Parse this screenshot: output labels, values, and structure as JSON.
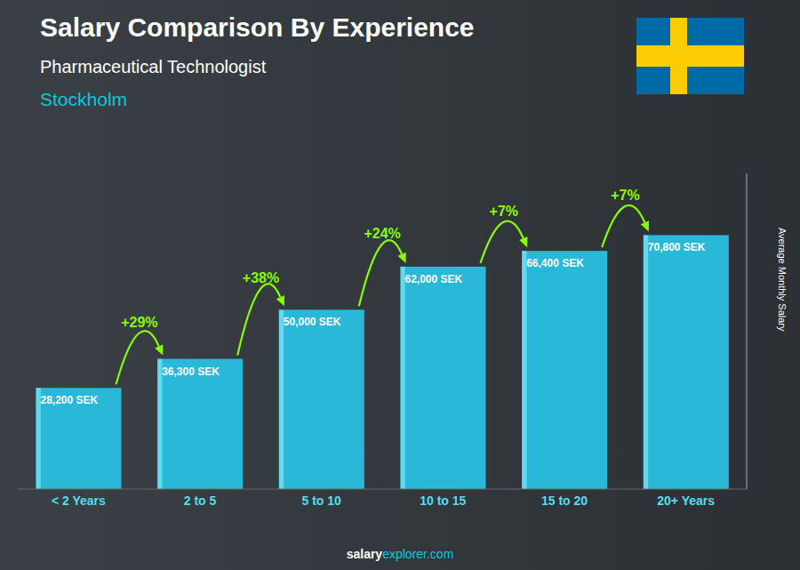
{
  "chart_data": {
    "type": "bar",
    "title": "Salary Comparison By Experience",
    "subtitle": "Pharmaceutical Technologist",
    "categories": [
      "< 2 Years",
      "2 to 5",
      "5 to 10",
      "10 to 15",
      "15 to 20",
      "20+ Years"
    ],
    "values": [
      28200,
      36300,
      50000,
      62000,
      66400,
      70800
    ],
    "value_labels": [
      "28,200 SEK",
      "36,300 SEK",
      "50,000 SEK",
      "62,000 SEK",
      "66,400 SEK",
      "70,800 SEK"
    ],
    "data_labels": true,
    "color": "#29b8d8",
    "ylabel": "Average Monthly Salary",
    "ylim": [
      0,
      88000
    ],
    "tick_labels": "x",
    "grid": false,
    "annotations": [
      {
        "text": "Stockholm"
      },
      {
        "text": "salary"
      },
      {
        "text": "explorer.com"
      },
      {
        "text": "+29%",
        "from": "< 2 Years",
        "to": "2 to 5"
      },
      {
        "text": "+38%",
        "from": "2 to 5",
        "to": "5 to 10"
      },
      {
        "text": "+24%",
        "from": "5 to 10",
        "to": "10 to 15"
      },
      {
        "text": "+7%",
        "from": "10 to 15",
        "to": "15 to 20"
      },
      {
        "text": "+7%",
        "from": "15 to 20",
        "to": "20+ Years"
      }
    ]
  }
}
